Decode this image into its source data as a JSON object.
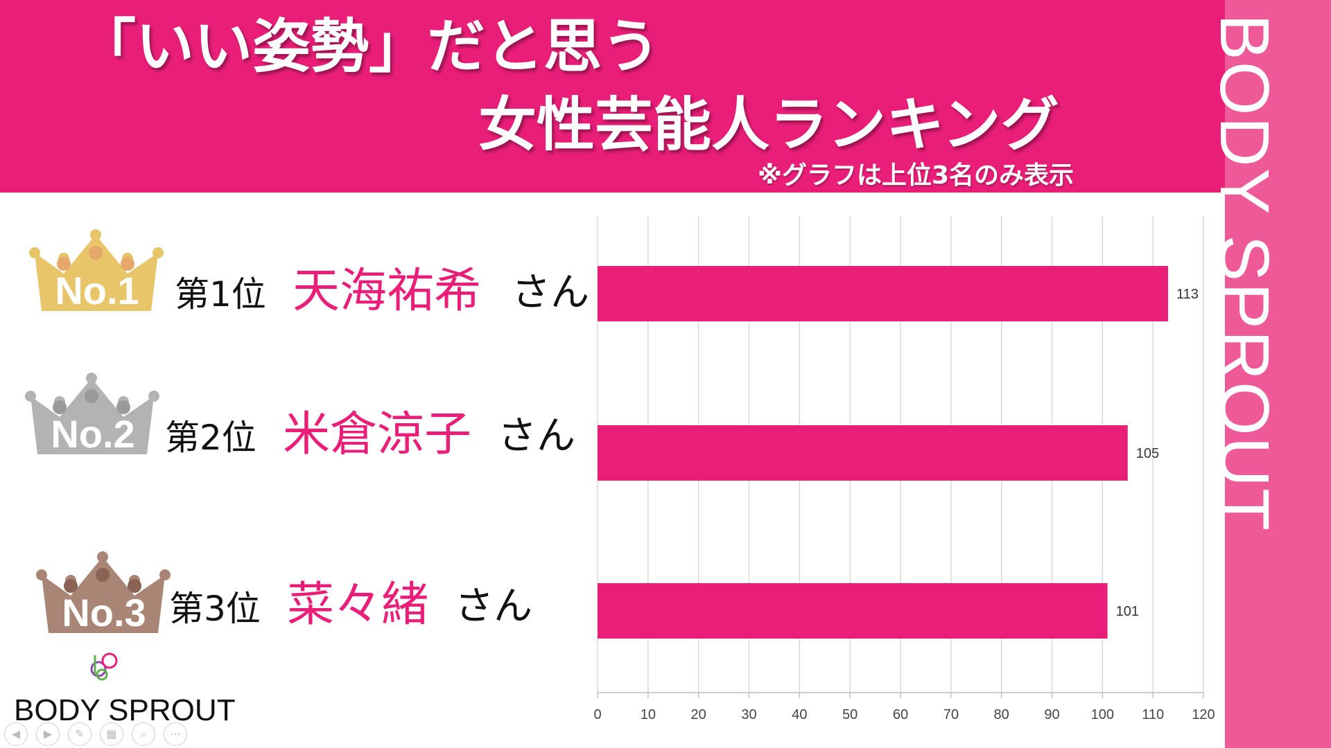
{
  "header": {
    "title_line1": "「いい姿勢」だと思う",
    "title_line2": "女性芸能人ランキング",
    "note": "※グラフは上位3名のみ表示"
  },
  "sidebar": {
    "text": "BODY SPROUT"
  },
  "ranks": [
    {
      "badge": "No.1",
      "label": "第1位",
      "name": "天海祐希",
      "suffix": "さん",
      "crown_color": "#e9c56a",
      "dot_color": "#e5a86a"
    },
    {
      "badge": "No.2",
      "label": "第2位",
      "name": "米倉涼子",
      "suffix": "さん",
      "crown_color": "#b3b3b3",
      "dot_color": "#9a9a9a"
    },
    {
      "badge": "No.3",
      "label": "第3位",
      "name": "菜々緒",
      "suffix": "さん",
      "crown_color": "#a98575",
      "dot_color": "#8a6355"
    }
  ],
  "chart_data": {
    "type": "bar",
    "orientation": "horizontal",
    "categories": [
      "天海祐希",
      "米倉涼子",
      "菜々緒"
    ],
    "values": [
      113,
      105,
      101
    ],
    "data_labels": [
      "113",
      "105",
      "101"
    ],
    "xlim": [
      0,
      120
    ],
    "x_ticks": [
      "0",
      "10",
      "20",
      "30",
      "40",
      "50",
      "60",
      "70",
      "80",
      "90",
      "100",
      "110",
      "120"
    ],
    "grid": "vertical",
    "bar_color": "#e91e78"
  },
  "logo": {
    "text": "BODY SPROUT"
  },
  "nav_icons": [
    "prev-icon",
    "next-icon",
    "pen-icon",
    "slides-icon",
    "zoom-icon",
    "more-icon"
  ],
  "colors": {
    "header": "#e91e78",
    "sidebar": "#ee5a98",
    "accent": "#e91e78"
  }
}
